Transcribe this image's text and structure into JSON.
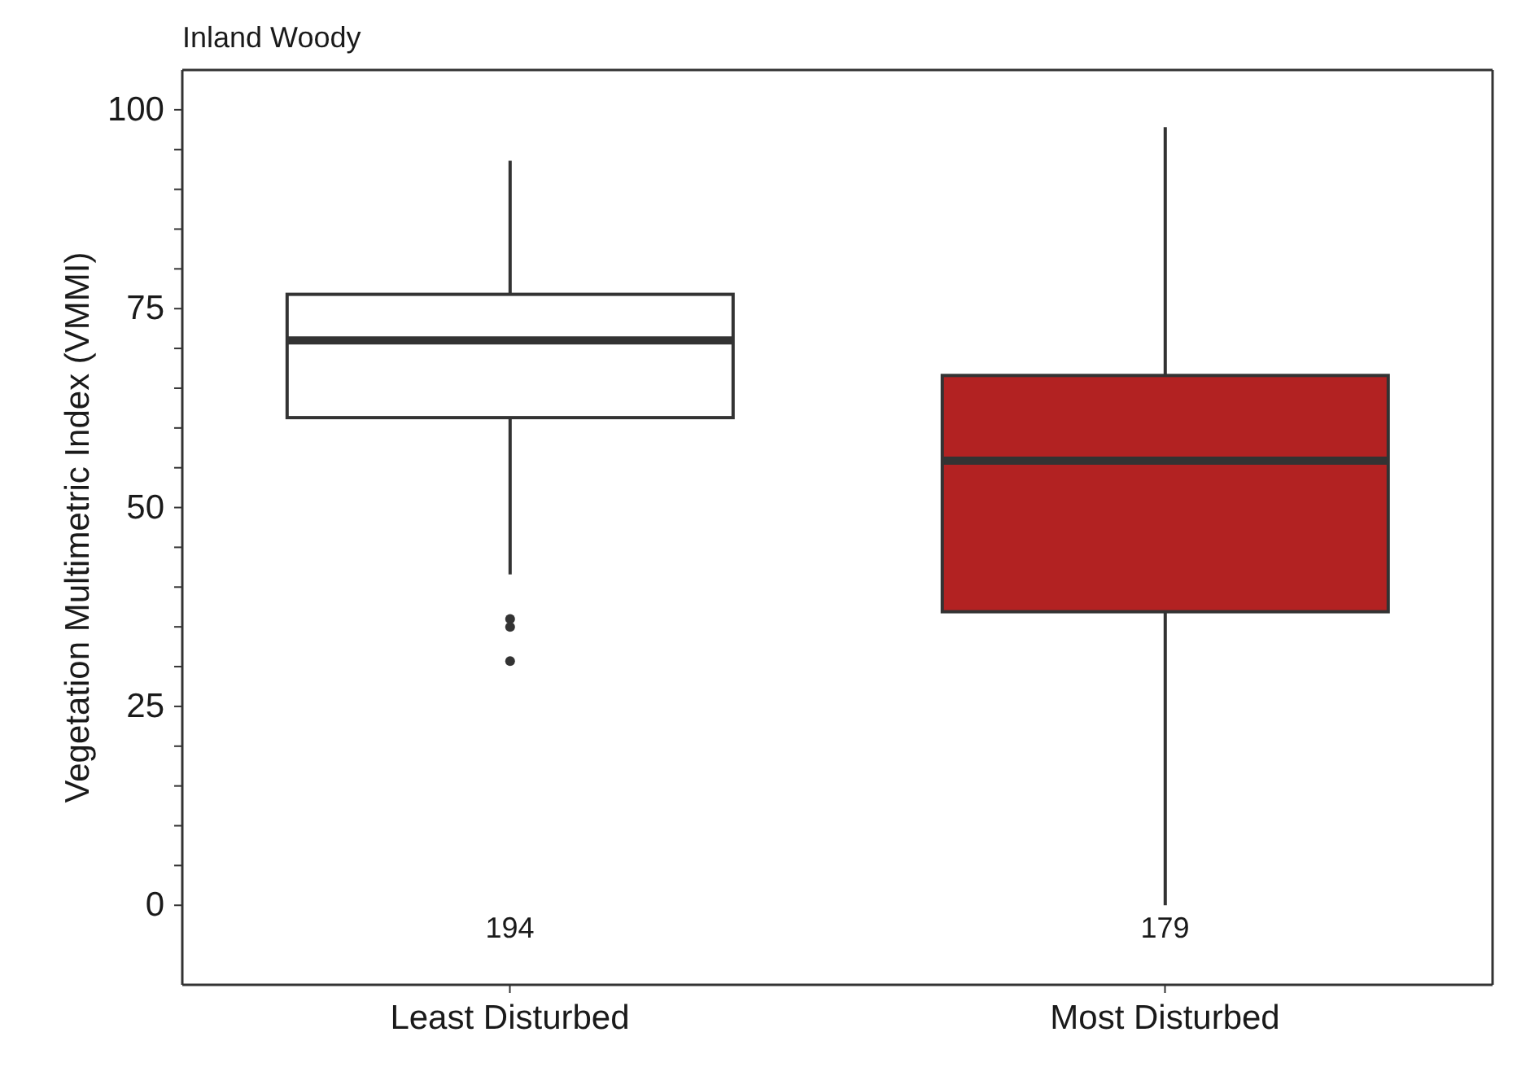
{
  "chart_data": {
    "type": "box",
    "title": "Inland Woody",
    "ylabel": "Vegetation Multimetric Index (VMMI)",
    "categories": [
      "Least Disturbed",
      "Most Disturbed"
    ],
    "colors": [
      "#ffffff",
      "#b22222"
    ],
    "boxes": [
      {
        "low": 41.6,
        "q1": 61.3,
        "median": 71,
        "q3": 76.8,
        "high": 93.6,
        "outliers": [
          36,
          35,
          30.7
        ]
      },
      {
        "low": 0,
        "q1": 36.9,
        "median": 55.9,
        "q3": 66.6,
        "high": 97.8
      }
    ],
    "ylim": [
      -10,
      105
    ],
    "yticks": [
      0,
      {
        "value": 5,
        "label": null
      },
      {
        "value": 10,
        "label": null
      },
      {
        "value": 15,
        "label": null
      },
      {
        "value": 20,
        "label": null
      },
      25,
      {
        "value": 30,
        "label": null
      },
      {
        "value": 35,
        "label": null
      },
      {
        "value": 40,
        "label": null
      },
      {
        "value": 45,
        "label": null
      },
      50,
      {
        "value": 55,
        "label": null
      },
      {
        "value": 60,
        "label": null
      },
      {
        "value": 65,
        "label": null
      },
      {
        "value": 70,
        "label": null
      },
      75,
      {
        "value": 80,
        "label": null
      },
      {
        "value": 85,
        "label": null
      },
      {
        "value": 90,
        "label": null
      },
      {
        "value": 95,
        "label": null
      },
      100
    ],
    "annotations": [
      "194",
      "179"
    ]
  }
}
